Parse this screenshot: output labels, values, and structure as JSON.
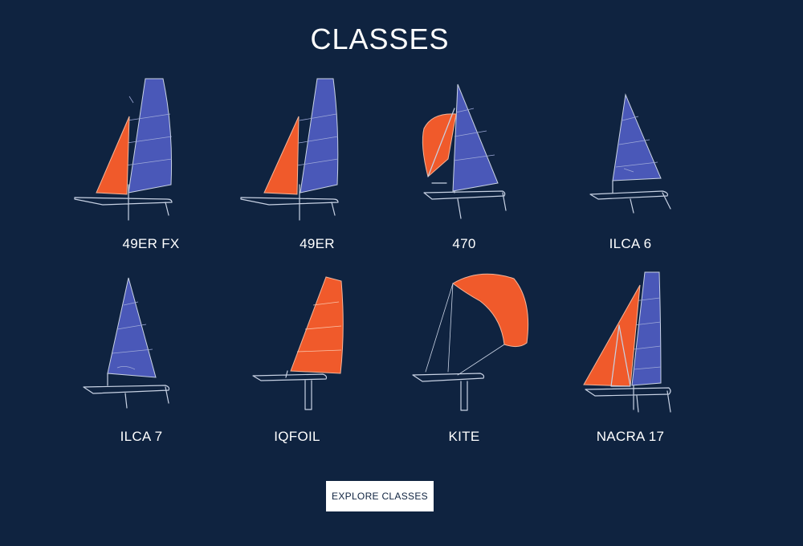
{
  "header": {
    "title": "CLASSES"
  },
  "colors": {
    "background": "#0f2340",
    "sail_blue": "#4a58b8",
    "sail_orange": "#f05a2b",
    "line": "#c8d2e4"
  },
  "classes": [
    {
      "label": "49ER FX",
      "icon": "skiff-49erfx-icon"
    },
    {
      "label": "49ER",
      "icon": "skiff-49er-icon"
    },
    {
      "label": "470",
      "icon": "dinghy-470-icon"
    },
    {
      "label": "ILCA 6",
      "icon": "dinghy-ilca6-icon"
    },
    {
      "label": "ILCA 7",
      "icon": "dinghy-ilca7-icon"
    },
    {
      "label": "IQFOIL",
      "icon": "windfoil-iqfoil-icon"
    },
    {
      "label": "KITE",
      "icon": "kitefoil-icon"
    },
    {
      "label": "NACRA 17",
      "icon": "catamaran-nacra17-icon"
    }
  ],
  "cta": {
    "label": "EXPLORE CLASSES"
  }
}
